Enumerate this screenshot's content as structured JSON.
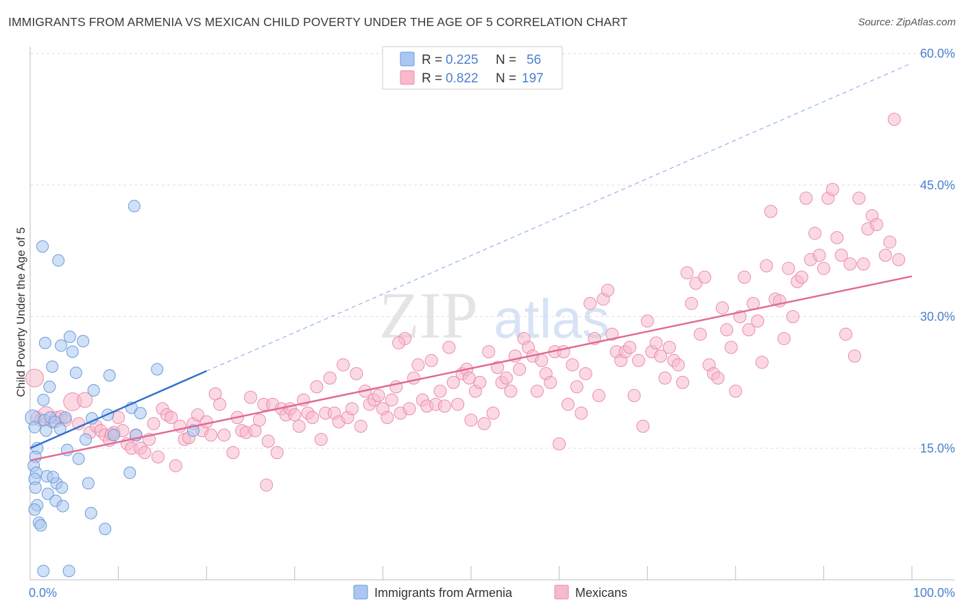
{
  "title": "IMMIGRANTS FROM ARMENIA VS MEXICAN CHILD POVERTY UNDER THE AGE OF 5 CORRELATION CHART",
  "source": "Source: ZipAtlas.com",
  "watermark": {
    "zip": "ZIP",
    "atlas": "atlas"
  },
  "colors": {
    "armenia_fill": "#a9c7f0",
    "armenia_stroke": "#6a9ad8",
    "armenia_line": "#2f6fce",
    "mexico_fill": "#f7b9cc",
    "mexico_stroke": "#e98bab",
    "mexico_line": "#e06a93",
    "tick_text": "#4a7fcf",
    "grid": "#dddddd"
  },
  "legend": {
    "r_label": "R =",
    "n_label": "N =",
    "armenia": {
      "r": "0.225",
      "n": "56"
    },
    "mexico": {
      "r": "0.822",
      "n": "197"
    }
  },
  "chart_data": {
    "type": "scatter",
    "title": "IMMIGRANTS FROM ARMENIA VS MEXICAN CHILD POVERTY UNDER THE AGE OF 5 CORRELATION CHART",
    "xlabel": "",
    "ylabel": "Child Poverty Under the Age of 5",
    "xlim": [
      0,
      100
    ],
    "ylim": [
      0,
      60
    ],
    "x_tick_labels": [
      "0.0%",
      "100.0%"
    ],
    "y_ticks": [
      15,
      30,
      45,
      60
    ],
    "y_tick_labels": [
      "15.0%",
      "30.0%",
      "45.0%",
      "60.0%"
    ],
    "legend_position": "top-center",
    "series": [
      {
        "name": "Immigrants from Armenia",
        "r": 0.225,
        "n": 56,
        "trend": {
          "x": [
            0,
            20
          ],
          "y": [
            15.0,
            23.8
          ]
        },
        "trend_extended": {
          "x": [
            20,
            100
          ],
          "y": [
            23.8,
            58.9
          ]
        },
        "points": [
          [
            0.3,
            18.5
          ],
          [
            0.5,
            17.4
          ],
          [
            0.8,
            15.0
          ],
          [
            0.6,
            14.0
          ],
          [
            0.4,
            13.0
          ],
          [
            0.7,
            12.2
          ],
          [
            0.5,
            11.5
          ],
          [
            0.6,
            10.5
          ],
          [
            0.8,
            8.5
          ],
          [
            0.5,
            8.0
          ],
          [
            1.0,
            6.5
          ],
          [
            1.2,
            6.2
          ],
          [
            1.5,
            20.5
          ],
          [
            1.6,
            18.2
          ],
          [
            1.8,
            17.0
          ],
          [
            1.9,
            11.8
          ],
          [
            2.0,
            9.8
          ],
          [
            2.2,
            22.0
          ],
          [
            2.5,
            24.3
          ],
          [
            1.4,
            38.0
          ],
          [
            1.7,
            27.0
          ],
          [
            2.3,
            18.5
          ],
          [
            2.8,
            18.0
          ],
          [
            3.2,
            36.4
          ],
          [
            3.4,
            17.2
          ],
          [
            3.0,
            11.0
          ],
          [
            2.6,
            11.7
          ],
          [
            2.9,
            9.0
          ],
          [
            3.5,
            26.7
          ],
          [
            3.6,
            10.5
          ],
          [
            3.7,
            8.4
          ],
          [
            4.2,
            14.8
          ],
          [
            4.5,
            27.7
          ],
          [
            4.8,
            26.0
          ],
          [
            5.2,
            23.6
          ],
          [
            5.5,
            13.8
          ],
          [
            4.0,
            18.5
          ],
          [
            6.0,
            27.2
          ],
          [
            6.3,
            16.0
          ],
          [
            6.6,
            11.0
          ],
          [
            6.9,
            7.6
          ],
          [
            7.2,
            21.6
          ],
          [
            7.0,
            18.4
          ],
          [
            8.8,
            18.8
          ],
          [
            8.5,
            5.8
          ],
          [
            9.0,
            23.3
          ],
          [
            9.5,
            16.5
          ],
          [
            11.3,
            12.2
          ],
          [
            11.8,
            42.6
          ],
          [
            11.5,
            19.6
          ],
          [
            12.0,
            16.5
          ],
          [
            12.5,
            19.0
          ],
          [
            14.4,
            24.0
          ],
          [
            1.5,
            1.0
          ],
          [
            4.4,
            1.0
          ],
          [
            18.5,
            17.0
          ]
        ]
      },
      {
        "name": "Mexicans",
        "r": 0.822,
        "n": 197,
        "trend": {
          "x": [
            0,
            100
          ],
          "y": [
            13.6,
            34.6
          ]
        },
        "points": [
          [
            0.5,
            23.0
          ],
          [
            0.8,
            18.5
          ],
          [
            1.2,
            18.2
          ],
          [
            1.8,
            18.8
          ],
          [
            2.5,
            18.0
          ],
          [
            3.0,
            18.5
          ],
          [
            3.5,
            18.6
          ],
          [
            4.0,
            18.2
          ],
          [
            4.8,
            20.3
          ],
          [
            5.5,
            17.8
          ],
          [
            6.2,
            20.5
          ],
          [
            6.8,
            16.8
          ],
          [
            7.5,
            17.5
          ],
          [
            8.0,
            17.0
          ],
          [
            8.5,
            16.5
          ],
          [
            9.0,
            15.9
          ],
          [
            9.5,
            16.8
          ],
          [
            10.0,
            18.5
          ],
          [
            10.5,
            17.0
          ],
          [
            11.0,
            15.5
          ],
          [
            11.5,
            15.0
          ],
          [
            12.0,
            16.5
          ],
          [
            12.5,
            15.0
          ],
          [
            13.0,
            14.5
          ],
          [
            13.5,
            16.0
          ],
          [
            14.0,
            17.8
          ],
          [
            14.5,
            14.0
          ],
          [
            15.0,
            19.5
          ],
          [
            15.5,
            18.8
          ],
          [
            16.0,
            18.5
          ],
          [
            16.5,
            13.0
          ],
          [
            17.0,
            17.5
          ],
          [
            17.5,
            16.0
          ],
          [
            18.0,
            16.2
          ],
          [
            18.5,
            17.8
          ],
          [
            19.0,
            18.8
          ],
          [
            19.5,
            17.0
          ],
          [
            20.0,
            18.0
          ],
          [
            20.5,
            16.5
          ],
          [
            21.0,
            21.2
          ],
          [
            21.5,
            20.0
          ],
          [
            22.0,
            16.5
          ],
          [
            23.0,
            14.5
          ],
          [
            23.5,
            18.5
          ],
          [
            24.0,
            17.0
          ],
          [
            24.5,
            16.8
          ],
          [
            25.0,
            20.8
          ],
          [
            25.5,
            17.0
          ],
          [
            26.0,
            18.2
          ],
          [
            26.5,
            20.0
          ],
          [
            27.0,
            15.8
          ],
          [
            27.5,
            20.0
          ],
          [
            28.0,
            14.5
          ],
          [
            28.5,
            19.5
          ],
          [
            29.0,
            18.8
          ],
          [
            29.5,
            19.5
          ],
          [
            30.0,
            18.8
          ],
          [
            30.5,
            17.5
          ],
          [
            31.0,
            20.5
          ],
          [
            31.5,
            19.0
          ],
          [
            32.0,
            18.5
          ],
          [
            32.5,
            22.0
          ],
          [
            33.0,
            16.0
          ],
          [
            33.5,
            19.0
          ],
          [
            34.0,
            23.0
          ],
          [
            34.5,
            19.0
          ],
          [
            35.0,
            18.0
          ],
          [
            35.5,
            24.5
          ],
          [
            36.0,
            18.5
          ],
          [
            36.5,
            19.5
          ],
          [
            37.0,
            23.5
          ],
          [
            37.5,
            17.5
          ],
          [
            38.0,
            21.5
          ],
          [
            38.5,
            20.0
          ],
          [
            39.0,
            20.5
          ],
          [
            39.5,
            21.0
          ],
          [
            40.0,
            19.5
          ],
          [
            40.5,
            18.5
          ],
          [
            41.0,
            20.5
          ],
          [
            41.5,
            22.0
          ],
          [
            42.0,
            19.0
          ],
          [
            42.5,
            27.5
          ],
          [
            43.0,
            19.5
          ],
          [
            43.5,
            23.0
          ],
          [
            44.0,
            24.5
          ],
          [
            44.5,
            20.5
          ],
          [
            45.0,
            19.8
          ],
          [
            45.5,
            25.0
          ],
          [
            46.0,
            20.0
          ],
          [
            46.5,
            21.5
          ],
          [
            47.0,
            19.8
          ],
          [
            47.5,
            26.5
          ],
          [
            48.0,
            22.5
          ],
          [
            48.5,
            20.0
          ],
          [
            49.0,
            23.5
          ],
          [
            49.5,
            24.0
          ],
          [
            50.0,
            18.2
          ],
          [
            50.5,
            21.5
          ],
          [
            51.0,
            22.5
          ],
          [
            51.5,
            17.8
          ],
          [
            52.0,
            26.0
          ],
          [
            52.5,
            19.0
          ],
          [
            53.0,
            24.2
          ],
          [
            53.5,
            22.5
          ],
          [
            54.0,
            23.0
          ],
          [
            54.5,
            21.5
          ],
          [
            55.0,
            25.5
          ],
          [
            55.5,
            24.0
          ],
          [
            56.0,
            27.5
          ],
          [
            56.5,
            26.5
          ],
          [
            57.0,
            25.5
          ],
          [
            57.5,
            21.5
          ],
          [
            58.0,
            25.0
          ],
          [
            58.5,
            23.5
          ],
          [
            59.0,
            22.5
          ],
          [
            59.5,
            26.0
          ],
          [
            60.0,
            15.5
          ],
          [
            60.5,
            26.0
          ],
          [
            61.0,
            20.0
          ],
          [
            61.5,
            24.5
          ],
          [
            62.0,
            22.0
          ],
          [
            62.5,
            19.0
          ],
          [
            63.0,
            23.5
          ],
          [
            63.5,
            31.5
          ],
          [
            64.0,
            27.5
          ],
          [
            64.5,
            21.0
          ],
          [
            65.0,
            32.0
          ],
          [
            65.5,
            33.0
          ],
          [
            66.0,
            28.0
          ],
          [
            66.5,
            26.0
          ],
          [
            67.0,
            25.0
          ],
          [
            67.5,
            26.0
          ],
          [
            68.0,
            26.5
          ],
          [
            68.5,
            21.0
          ],
          [
            69.0,
            25.0
          ],
          [
            69.5,
            17.5
          ],
          [
            70.0,
            29.5
          ],
          [
            70.5,
            26.0
          ],
          [
            71.0,
            27.0
          ],
          [
            71.5,
            25.5
          ],
          [
            72.0,
            23.0
          ],
          [
            72.5,
            26.5
          ],
          [
            73.0,
            25.0
          ],
          [
            73.5,
            24.5
          ],
          [
            74.0,
            22.5
          ],
          [
            74.5,
            35.0
          ],
          [
            75.0,
            31.5
          ],
          [
            75.5,
            33.8
          ],
          [
            76.0,
            28.0
          ],
          [
            76.5,
            34.5
          ],
          [
            77.0,
            24.5
          ],
          [
            77.5,
            23.5
          ],
          [
            78.0,
            23.0
          ],
          [
            78.5,
            31.0
          ],
          [
            79.0,
            28.5
          ],
          [
            79.5,
            26.5
          ],
          [
            80.0,
            21.5
          ],
          [
            80.5,
            30.0
          ],
          [
            81.0,
            34.5
          ],
          [
            81.5,
            28.5
          ],
          [
            82.0,
            31.5
          ],
          [
            82.5,
            29.5
          ],
          [
            83.0,
            24.8
          ],
          [
            83.5,
            35.8
          ],
          [
            84.0,
            42.0
          ],
          [
            84.5,
            32.0
          ],
          [
            85.0,
            31.8
          ],
          [
            85.5,
            27.5
          ],
          [
            86.0,
            35.5
          ],
          [
            86.5,
            30.0
          ],
          [
            87.0,
            34.0
          ],
          [
            87.5,
            34.5
          ],
          [
            88.0,
            43.5
          ],
          [
            88.5,
            36.5
          ],
          [
            89.0,
            39.5
          ],
          [
            89.5,
            37.0
          ],
          [
            90.0,
            35.5
          ],
          [
            90.5,
            43.5
          ],
          [
            91.0,
            44.5
          ],
          [
            91.5,
            39.0
          ],
          [
            92.0,
            37.0
          ],
          [
            92.5,
            28.0
          ],
          [
            93.0,
            36.0
          ],
          [
            93.5,
            25.5
          ],
          [
            94.0,
            43.5
          ],
          [
            94.5,
            36.0
          ],
          [
            95.0,
            40.0
          ],
          [
            95.5,
            41.5
          ],
          [
            96.0,
            40.5
          ],
          [
            97.0,
            37.0
          ],
          [
            97.5,
            38.5
          ],
          [
            98.0,
            52.5
          ],
          [
            98.5,
            36.5
          ],
          [
            9.2,
            16.6
          ],
          [
            26.8,
            10.8
          ],
          [
            41.8,
            27.0
          ],
          [
            49.8,
            23.0
          ]
        ]
      }
    ]
  },
  "bottom_legend": [
    {
      "label": "Immigrants from Armenia"
    },
    {
      "label": "Mexicans"
    }
  ]
}
